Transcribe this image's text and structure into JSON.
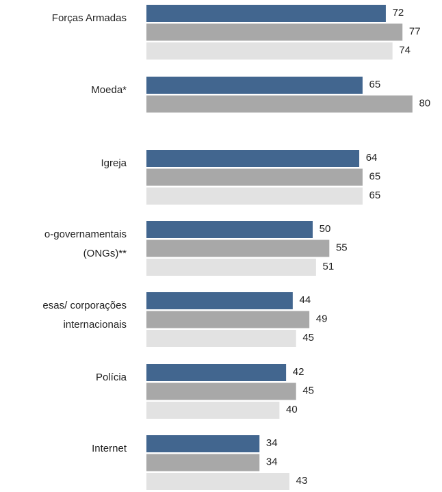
{
  "chart_data": {
    "type": "bar",
    "orientation": "horizontal",
    "categories": [
      [
        "Forças Armadas"
      ],
      [
        "Moeda*"
      ],
      [
        "Igreja"
      ],
      [
        "o-governamentais",
        "(ONGs)**"
      ],
      [
        "esas/ corporações",
        "internacionais"
      ],
      [
        "Polícia"
      ],
      [
        "Internet"
      ]
    ],
    "series": [
      {
        "color": "#42668f",
        "values": [
          72,
          65,
          64,
          50,
          44,
          42,
          34
        ]
      },
      {
        "color": "#a8a8a8",
        "values": [
          77,
          80,
          65,
          55,
          49,
          45,
          34
        ]
      },
      {
        "color": "#e2e2e2",
        "values": [
          74,
          null,
          65,
          51,
          45,
          40,
          43
        ]
      }
    ],
    "xlim": [
      0,
      100
    ],
    "grid": false,
    "legend": "none"
  }
}
